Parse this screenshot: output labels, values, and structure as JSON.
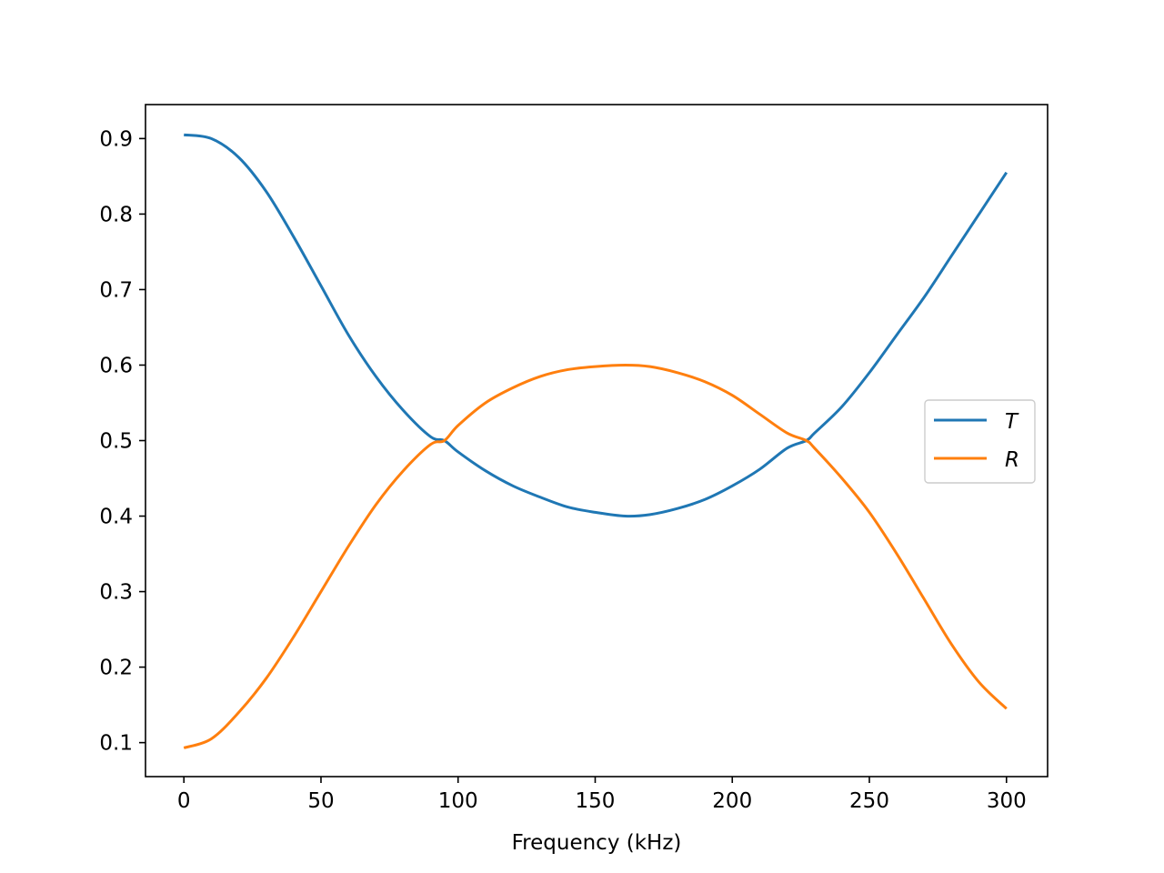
{
  "chart_data": {
    "type": "line",
    "title": "",
    "xlabel": "Frequency (kHz)",
    "ylabel": "",
    "xlim": [
      -14,
      315
    ],
    "ylim": [
      0.055,
      0.945
    ],
    "xticks": [
      0,
      50,
      100,
      150,
      200,
      250,
      300
    ],
    "yticks": [
      0.1,
      0.2,
      0.3,
      0.4,
      0.5,
      0.6,
      0.7,
      0.8,
      0.9
    ],
    "xtick_labels": [
      "0",
      "50",
      "100",
      "150",
      "200",
      "250",
      "300"
    ],
    "ytick_labels": [
      "0.1",
      "0.2",
      "0.3",
      "0.4",
      "0.5",
      "0.6",
      "0.7",
      "0.8",
      "0.9"
    ],
    "grid": false,
    "legend": {
      "position": "center-right",
      "entries": [
        "T",
        "R"
      ]
    },
    "x": [
      0,
      10,
      20,
      30,
      40,
      50,
      60,
      70,
      80,
      90,
      95,
      100,
      110,
      120,
      130,
      140,
      150,
      161,
      170,
      180,
      190,
      200,
      210,
      220,
      227,
      230,
      240,
      250,
      260,
      270,
      280,
      290,
      300
    ],
    "series": [
      {
        "name": "T",
        "color": "#1f77b4",
        "values": [
          0.905,
          0.9,
          0.875,
          0.83,
          0.77,
          0.705,
          0.64,
          0.585,
          0.54,
          0.505,
          0.5,
          0.485,
          0.46,
          0.44,
          0.425,
          0.412,
          0.405,
          0.4,
          0.402,
          0.41,
          0.422,
          0.44,
          0.462,
          0.49,
          0.5,
          0.51,
          0.545,
          0.59,
          0.64,
          0.69,
          0.745,
          0.8,
          0.855
        ]
      },
      {
        "name": "R",
        "color": "#ff7f0e",
        "values": [
          0.093,
          0.105,
          0.14,
          0.185,
          0.24,
          0.3,
          0.36,
          0.415,
          0.46,
          0.495,
          0.5,
          0.52,
          0.55,
          0.57,
          0.585,
          0.594,
          0.598,
          0.6,
          0.598,
          0.59,
          0.578,
          0.56,
          0.535,
          0.51,
          0.5,
          0.49,
          0.45,
          0.405,
          0.35,
          0.29,
          0.23,
          0.18,
          0.145
        ]
      }
    ]
  }
}
